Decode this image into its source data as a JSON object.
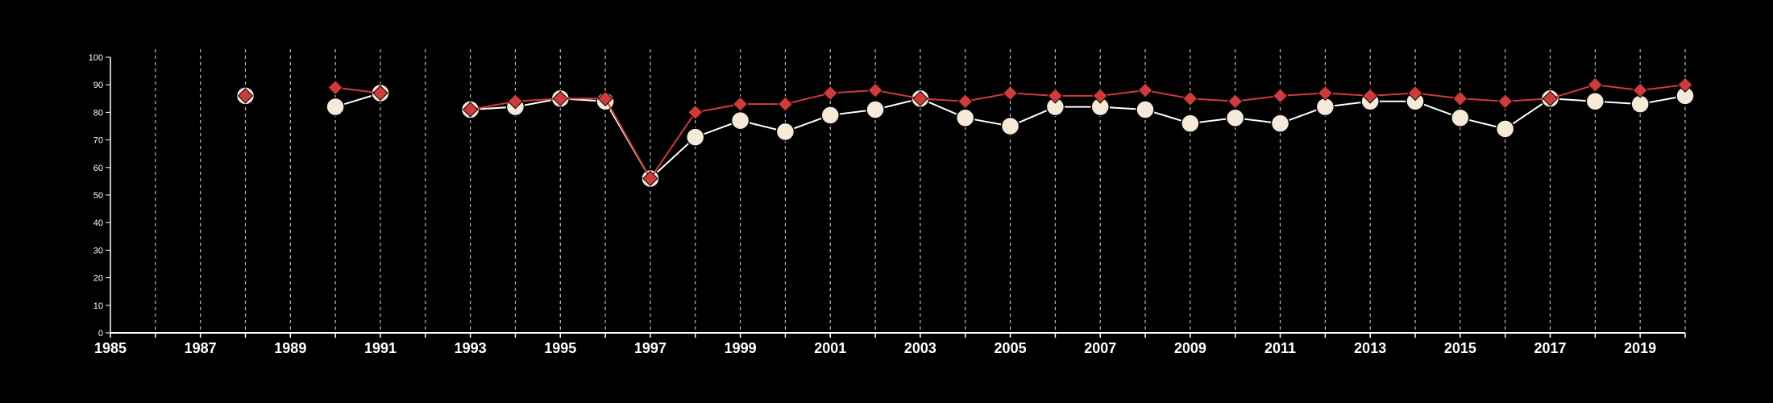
{
  "chart_data": {
    "type": "line",
    "title": "",
    "xlabel": "",
    "ylabel": "",
    "xlim": [
      1985,
      2020
    ],
    "ylim": [
      0,
      100
    ],
    "y_ticks": [
      0,
      10,
      20,
      30,
      40,
      50,
      60,
      70,
      80,
      90,
      100
    ],
    "x_tick_labels": [
      1985,
      1987,
      1989,
      1991,
      1993,
      1995,
      1997,
      1999,
      2001,
      2003,
      2005,
      2007,
      2009,
      2011,
      2013,
      2015,
      2017,
      2019
    ],
    "grid": "vertical dashed at each year",
    "legend": "none",
    "series": [
      {
        "marker": "circle",
        "color": "#f5ead8",
        "line_color": "#ffffff",
        "points": [
          [
            1988,
            86
          ],
          [
            1990,
            82
          ],
          [
            1991,
            87
          ],
          [
            1993,
            81
          ],
          [
            1994,
            82
          ],
          [
            1995,
            85
          ],
          [
            1996,
            84
          ],
          [
            1997,
            56
          ],
          [
            1998,
            71
          ],
          [
            1999,
            77
          ],
          [
            2000,
            73
          ],
          [
            2001,
            79
          ],
          [
            2002,
            81
          ],
          [
            2003,
            85
          ],
          [
            2004,
            78
          ],
          [
            2005,
            75
          ],
          [
            2006,
            82
          ],
          [
            2007,
            82
          ],
          [
            2008,
            81
          ],
          [
            2009,
            76
          ],
          [
            2010,
            78
          ],
          [
            2011,
            76
          ],
          [
            2012,
            82
          ],
          [
            2013,
            84
          ],
          [
            2014,
            84
          ],
          [
            2015,
            78
          ],
          [
            2016,
            74
          ],
          [
            2017,
            85
          ],
          [
            2018,
            84
          ],
          [
            2019,
            83
          ],
          [
            2020,
            86
          ]
        ]
      },
      {
        "marker": "diamond",
        "color": "#d03a3a",
        "line_color": "#d03a3a",
        "points": [
          [
            1988,
            86
          ],
          [
            1990,
            89
          ],
          [
            1991,
            87
          ],
          [
            1993,
            81
          ],
          [
            1994,
            84
          ],
          [
            1995,
            85
          ],
          [
            1996,
            85
          ],
          [
            1997,
            56
          ],
          [
            1998,
            80
          ],
          [
            1999,
            83
          ],
          [
            2000,
            83
          ],
          [
            2001,
            87
          ],
          [
            2002,
            88
          ],
          [
            2003,
            85
          ],
          [
            2004,
            84
          ],
          [
            2005,
            87
          ],
          [
            2006,
            86
          ],
          [
            2007,
            86
          ],
          [
            2008,
            88
          ],
          [
            2009,
            85
          ],
          [
            2010,
            84
          ],
          [
            2011,
            86
          ],
          [
            2012,
            87
          ],
          [
            2013,
            86
          ],
          [
            2014,
            87
          ],
          [
            2015,
            85
          ],
          [
            2016,
            84
          ],
          [
            2017,
            85
          ],
          [
            2018,
            90
          ],
          [
            2019,
            88
          ],
          [
            2020,
            90
          ]
        ]
      }
    ]
  }
}
